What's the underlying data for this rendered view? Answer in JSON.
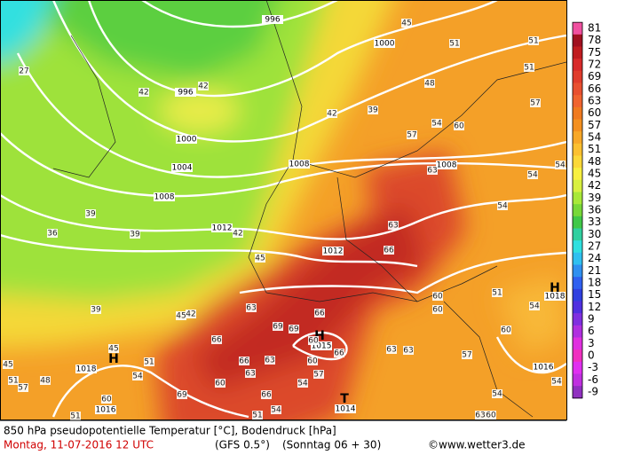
{
  "footer": {
    "title": "850 hPa pseudopotentielle Temperatur [°C], Bodendruck [hPa]",
    "date": "Montag, 11-07-2016  12 UTC",
    "model": "(GFS 0.5°)",
    "run": "(Sonntag 06 + 30)",
    "credit": "©www.wetter3.de"
  },
  "colorbar": {
    "values": [
      81,
      78,
      75,
      72,
      69,
      66,
      63,
      60,
      57,
      54,
      51,
      48,
      45,
      42,
      39,
      36,
      33,
      30,
      27,
      24,
      21,
      18,
      15,
      12,
      9,
      6,
      3,
      0,
      -3,
      -6,
      -9
    ],
    "colors": [
      "#f050a0",
      "#a01020",
      "#c01c20",
      "#d82a2a",
      "#e03c2c",
      "#e85030",
      "#f06430",
      "#f07a20",
      "#f49020",
      "#f8a828",
      "#fcc030",
      "#fcd838",
      "#f8f040",
      "#d8f040",
      "#a8e838",
      "#78d838",
      "#40c848",
      "#30d0a0",
      "#30e0e0",
      "#30c0f0",
      "#3090f0",
      "#3060f0",
      "#3040e0",
      "#5030e0",
      "#8030e0",
      "#b030e0",
      "#e030e0",
      "#f030c0",
      "#e030f0",
      "#c030e0",
      "#9030c0"
    ]
  },
  "isobar_labels": [
    996,
    996,
    1000,
    1000,
    1004,
    1008,
    1008,
    1008,
    1012,
    1012,
    1016,
    1016,
    1015,
    1014,
    1018,
    1018
  ],
  "pressure_centers": [
    "H",
    "H",
    "T",
    "H"
  ],
  "temperature_labels": [
    27,
    42,
    42,
    48,
    39,
    42,
    57,
    54,
    60,
    63,
    51,
    51,
    51,
    54,
    54,
    54,
    57,
    39,
    36,
    39,
    42,
    45,
    63,
    66,
    60,
    60,
    51,
    54,
    39,
    45,
    51,
    54,
    45,
    42,
    63,
    66,
    69,
    69,
    60,
    66,
    63,
    66,
    63,
    60,
    66,
    54,
    60,
    57,
    66,
    69,
    51,
    54,
    60,
    57,
    48,
    45,
    51,
    57,
    60,
    54,
    60,
    63,
    63,
    63,
    54,
    51,
    45
  ]
}
